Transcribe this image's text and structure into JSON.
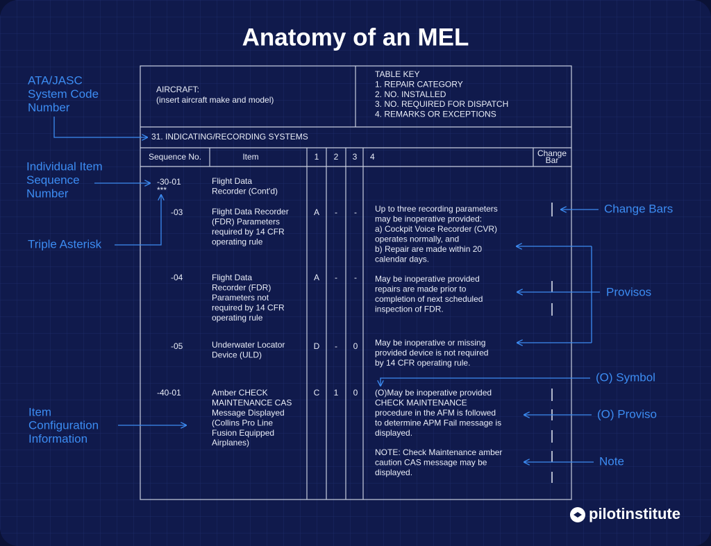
{
  "title": "Anatomy of an MEL",
  "table": {
    "aircraft": [
      "AIRCRAFT:",
      "(insert aircraft make and model)"
    ],
    "table_key": [
      "TABLE KEY",
      "1. REPAIR CATEGORY",
      "2. NO. INSTALLED",
      "3. NO. REQUIRED FOR DISPATCH",
      "4. REMARKS OR EXCEPTIONS"
    ],
    "system": "31. INDICATING/RECORDING SYSTEMS",
    "headers": [
      "Sequence No.",
      "Item",
      "1",
      "2",
      "3",
      "4"
    ],
    "change_bar_header": [
      "Change",
      "Bar"
    ],
    "rows": [
      {
        "seq": [
          "-30-01",
          "***"
        ],
        "item": [
          "Flight Data",
          "Recorder (Cont'd)"
        ],
        "cols": [],
        "remarks": []
      },
      {
        "seq": [
          "-03"
        ],
        "item": [
          "Flight Data Recorder",
          "(FDR) Parameters",
          "required by 14 CFR",
          "operating rule"
        ],
        "cols": [
          "A",
          "-",
          "-"
        ],
        "remarks": [
          "Up to three recording parameters",
          "may be inoperative provided:",
          " a) Cockpit Voice Recorder (CVR)",
          "operates normally, and",
          " b) Repair are made within 20",
          "calendar days."
        ]
      },
      {
        "seq": [
          "-04"
        ],
        "item": [
          "Flight Data",
          "Recorder (FDR)",
          "Parameters not",
          "required by 14 CFR",
          "operating rule"
        ],
        "cols": [
          "A",
          "-",
          "-"
        ],
        "remarks": [
          "May be inoperative provided",
          "repairs are made prior to",
          "completion of next scheduled",
          "inspection of FDR."
        ]
      },
      {
        "seq": [
          "-05"
        ],
        "item": [
          "Underwater Locator",
          "Device (ULD)"
        ],
        "cols": [
          "D",
          "-",
          "0"
        ],
        "remarks": [
          "May be inoperative or missing",
          "provided device is not required",
          "by 14 CFR operating rule."
        ]
      },
      {
        "seq": [
          "-40-01"
        ],
        "item": [
          "Amber CHECK",
          "MAINTENANCE CAS",
          "Message Displayed",
          "(Collins Pro Line",
          "Fusion Equipped",
          "Airplanes)"
        ],
        "cols": [
          "C",
          "1",
          "0"
        ],
        "remarks": [
          "(O)May be inoperative provided",
          "CHECK MAINTENANCE",
          "procedure in the AFM is followed",
          "to determine APM Fail message is",
          "displayed."
        ],
        "note": [
          "NOTE: Check Maintenance amber",
          "caution CAS message may be",
          "displayed."
        ]
      }
    ]
  },
  "callouts": [
    {
      "label": [
        "ATA/JASC",
        "System Code",
        "Number"
      ]
    },
    {
      "label": [
        "Individual Item",
        "Sequence",
        "Number"
      ]
    },
    {
      "label": [
        "Triple Asterisk"
      ]
    },
    {
      "label": [
        "Item",
        "Configuration",
        "Information"
      ]
    },
    {
      "label": [
        "Change Bars"
      ]
    },
    {
      "label": [
        "Provisos"
      ]
    },
    {
      "label": [
        "(O) Symbol"
      ]
    },
    {
      "label": [
        "(O) Proviso"
      ]
    },
    {
      "label": [
        "Note"
      ]
    }
  ],
  "brand": "pilotinstitute"
}
